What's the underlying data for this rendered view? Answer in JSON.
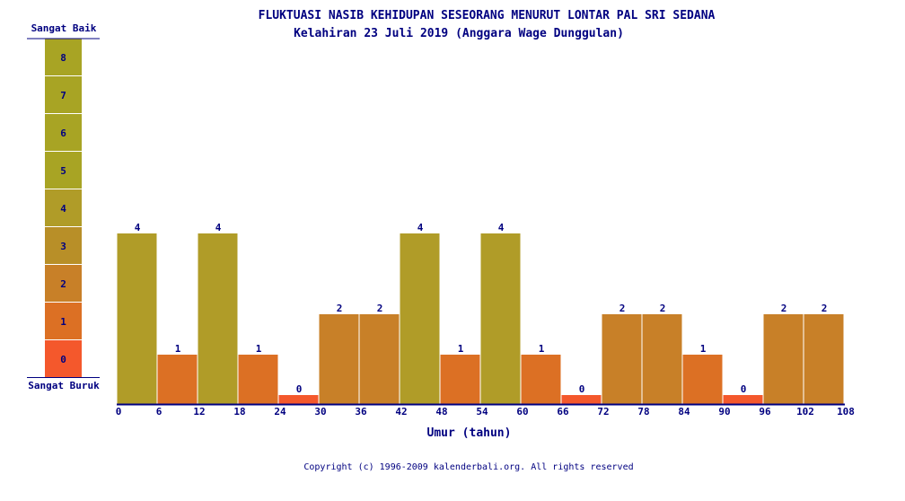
{
  "chart_data": {
    "type": "bar",
    "title": "FLUKTUASI NASIB KEHIDUPAN SESEORANG MENURUT LONTAR PAL SRI SEDANA",
    "subtitle": "Kelahiran 23 Juli 2019 (Anggara Wage Dunggulan)",
    "xlabel": "Umur (tahun)",
    "ylabel": "",
    "x_ticks": [
      0,
      6,
      12,
      18,
      24,
      30,
      36,
      42,
      48,
      54,
      60,
      66,
      72,
      78,
      84,
      90,
      96,
      102,
      108
    ],
    "bins_start": [
      0,
      6,
      12,
      18,
      24,
      30,
      36,
      42,
      48,
      54,
      60,
      66,
      72,
      78,
      84,
      90,
      96,
      102
    ],
    "bin_width": 6,
    "values": [
      4,
      1,
      4,
      1,
      0,
      2,
      2,
      4,
      1,
      4,
      1,
      0,
      2,
      2,
      1,
      0,
      2,
      2
    ],
    "ylim": [
      0,
      8
    ],
    "grid": false,
    "scale_legend": {
      "top_label": "Sangat Baik",
      "bottom_label": "Sangat Buruk",
      "levels": [
        0,
        1,
        2,
        3,
        4,
        5,
        6,
        7,
        8
      ]
    },
    "level_colors": [
      "#f4582c",
      "#dc7024",
      "#c88028",
      "#b88f28",
      "#b09c28",
      "#a8a424",
      "#a8a424",
      "#a8a424",
      "#a8a424"
    ]
  },
  "footer": {
    "copyright": "Copyright (c) 1996-2009 kalenderbali.org. All rights reserved"
  }
}
